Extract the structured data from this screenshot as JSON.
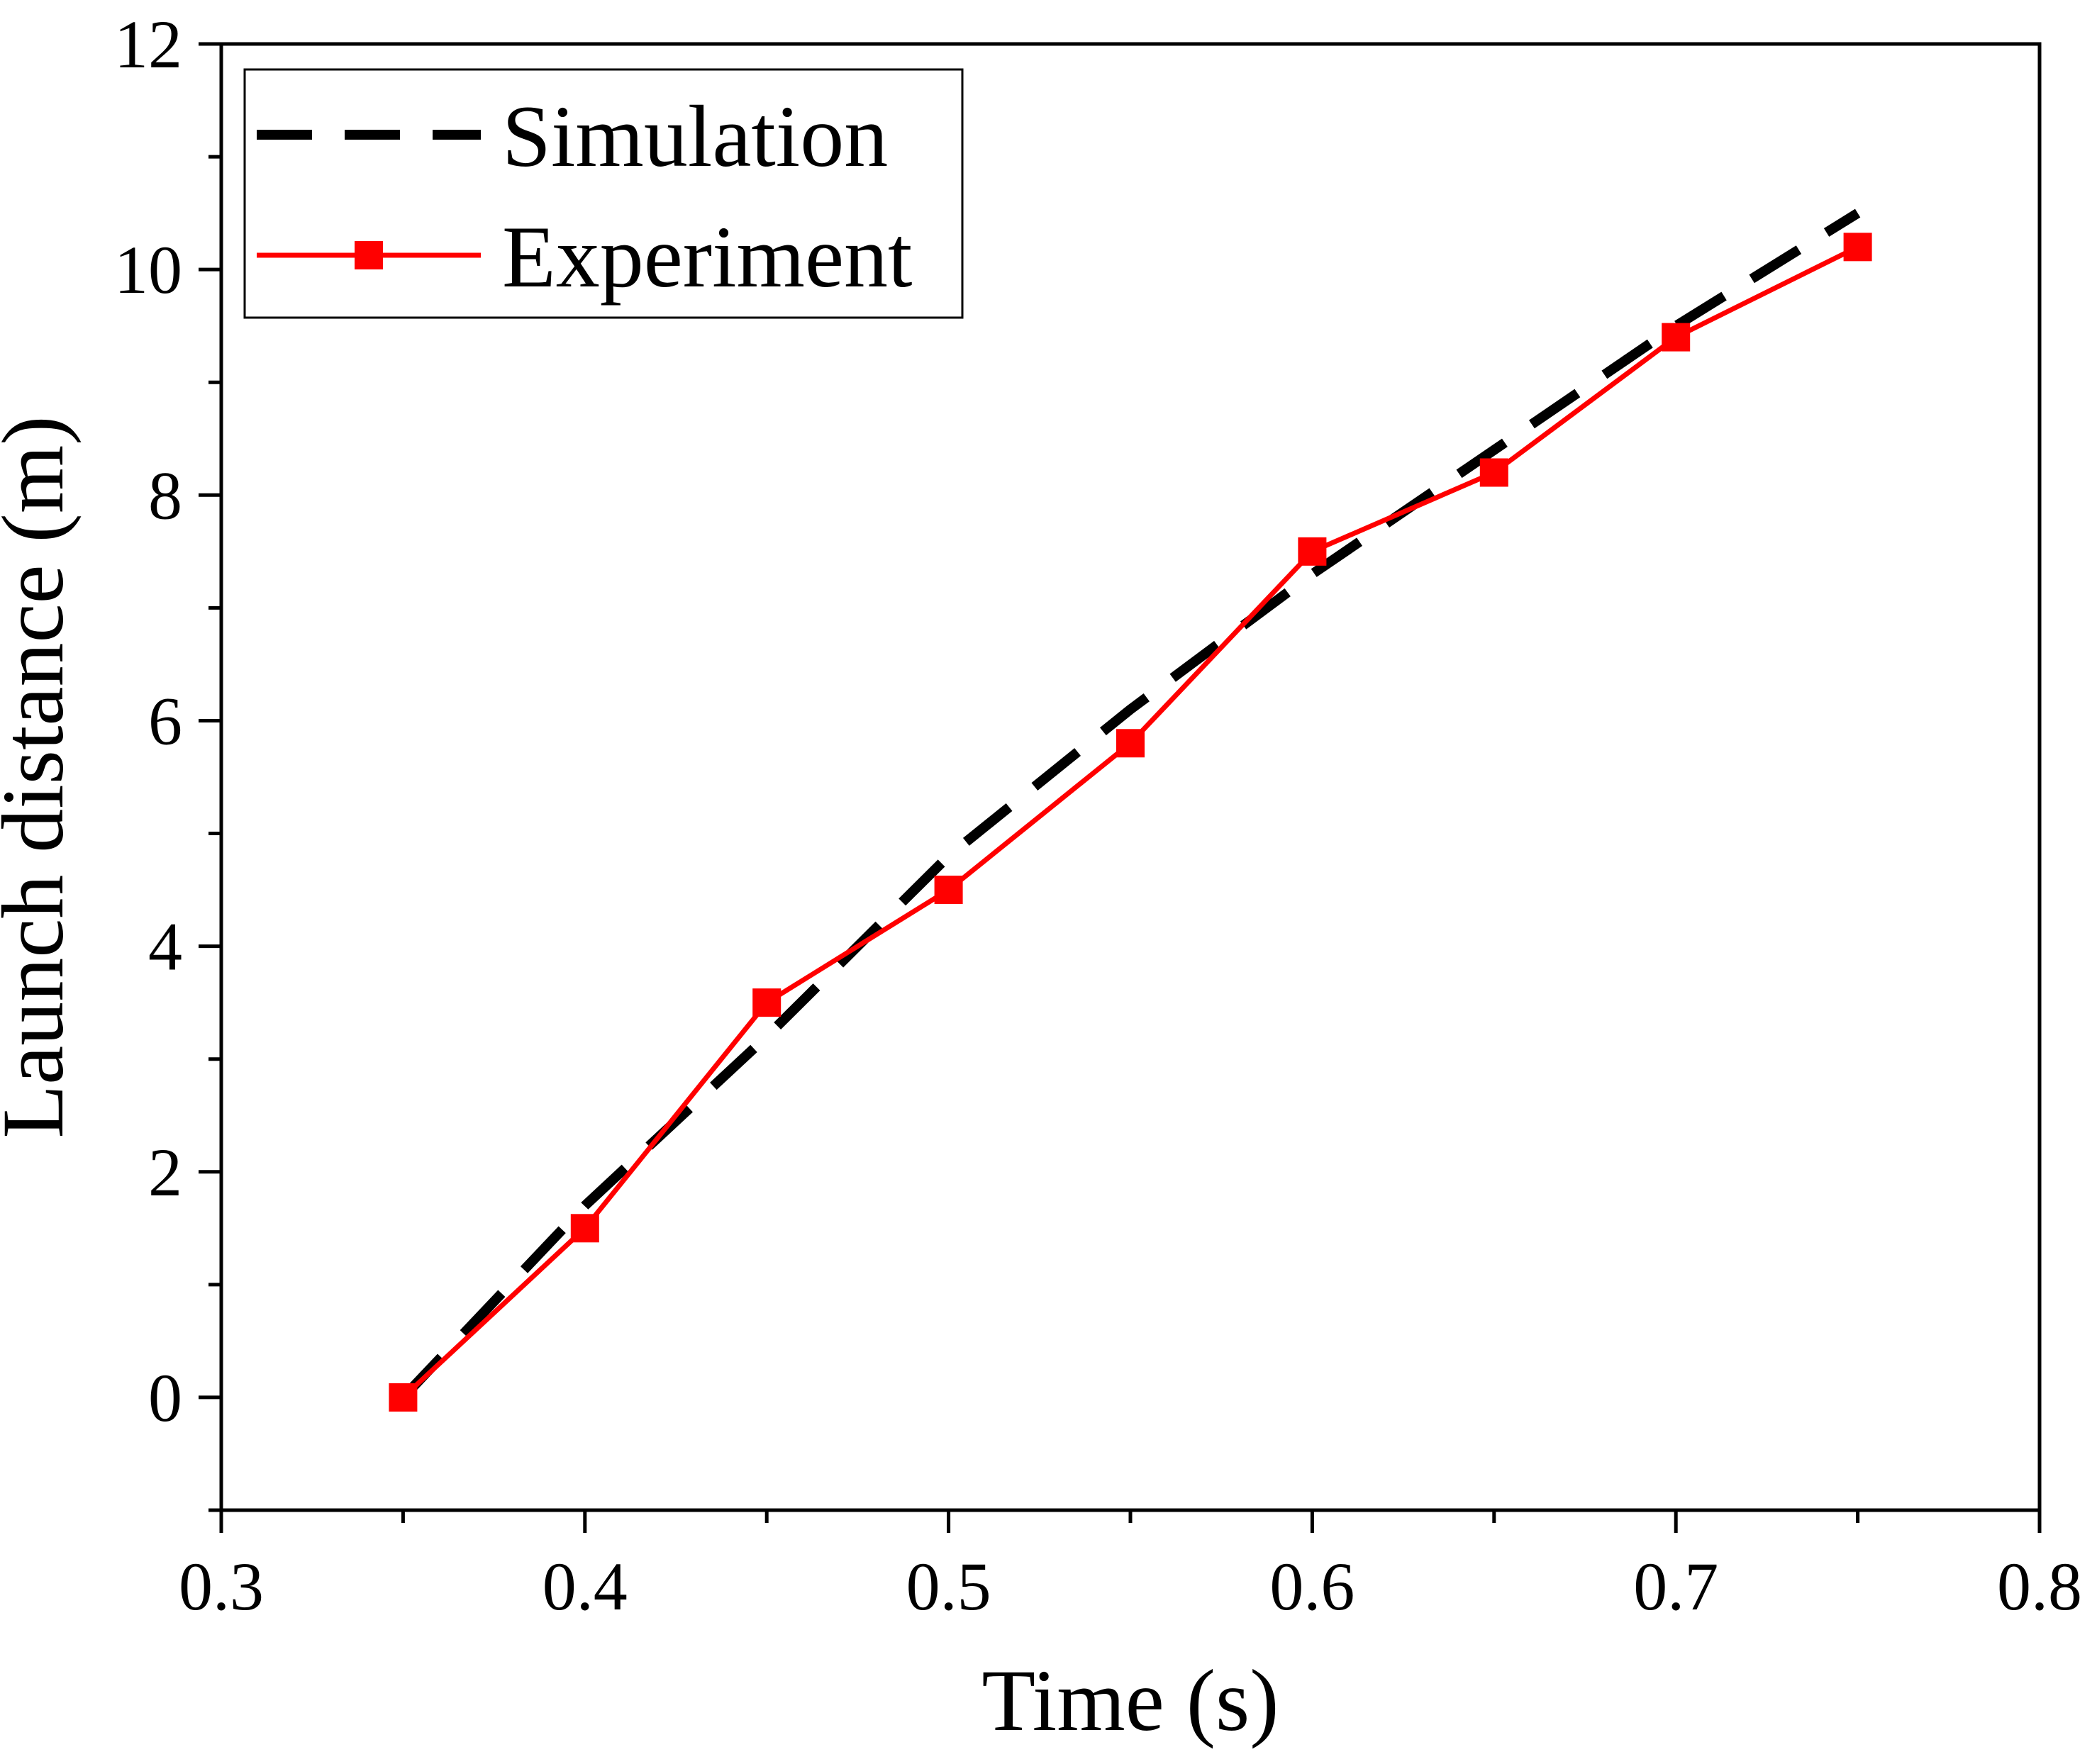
{
  "chart_data": {
    "type": "line",
    "title": "",
    "xlabel": "Time (s)",
    "ylabel": "Launch distance (m)",
    "xlim": [
      0.3,
      0.8
    ],
    "ylim": [
      -1,
      12
    ],
    "xticks": [
      0.3,
      0.4,
      0.5,
      0.6,
      0.7,
      0.8
    ],
    "xtick_labels": [
      "0.3",
      "0.4",
      "0.5",
      "0.6",
      "0.7",
      "0.8"
    ],
    "yticks": [
      0,
      2,
      4,
      6,
      8,
      10,
      12
    ],
    "ytick_labels": [
      "0",
      "2",
      "4",
      "6",
      "8",
      "10",
      "12"
    ],
    "grid": false,
    "legend_position": "top-left",
    "series": [
      {
        "name": "Simulation",
        "color": "#000000",
        "style": "dashed",
        "marker": "none",
        "x": [
          0.35,
          0.4,
          0.45,
          0.5,
          0.55,
          0.6,
          0.65,
          0.7,
          0.75
        ],
        "y": [
          0.0,
          1.7,
          3.2,
          4.8,
          6.1,
          7.3,
          8.4,
          9.5,
          10.5
        ]
      },
      {
        "name": "Experiment",
        "color": "#ff0000",
        "style": "solid",
        "marker": "square",
        "x": [
          0.35,
          0.4,
          0.45,
          0.5,
          0.55,
          0.6,
          0.65,
          0.7,
          0.75
        ],
        "y": [
          0.0,
          1.5,
          3.5,
          4.5,
          5.8,
          7.5,
          8.2,
          9.4,
          10.2
        ]
      }
    ]
  }
}
